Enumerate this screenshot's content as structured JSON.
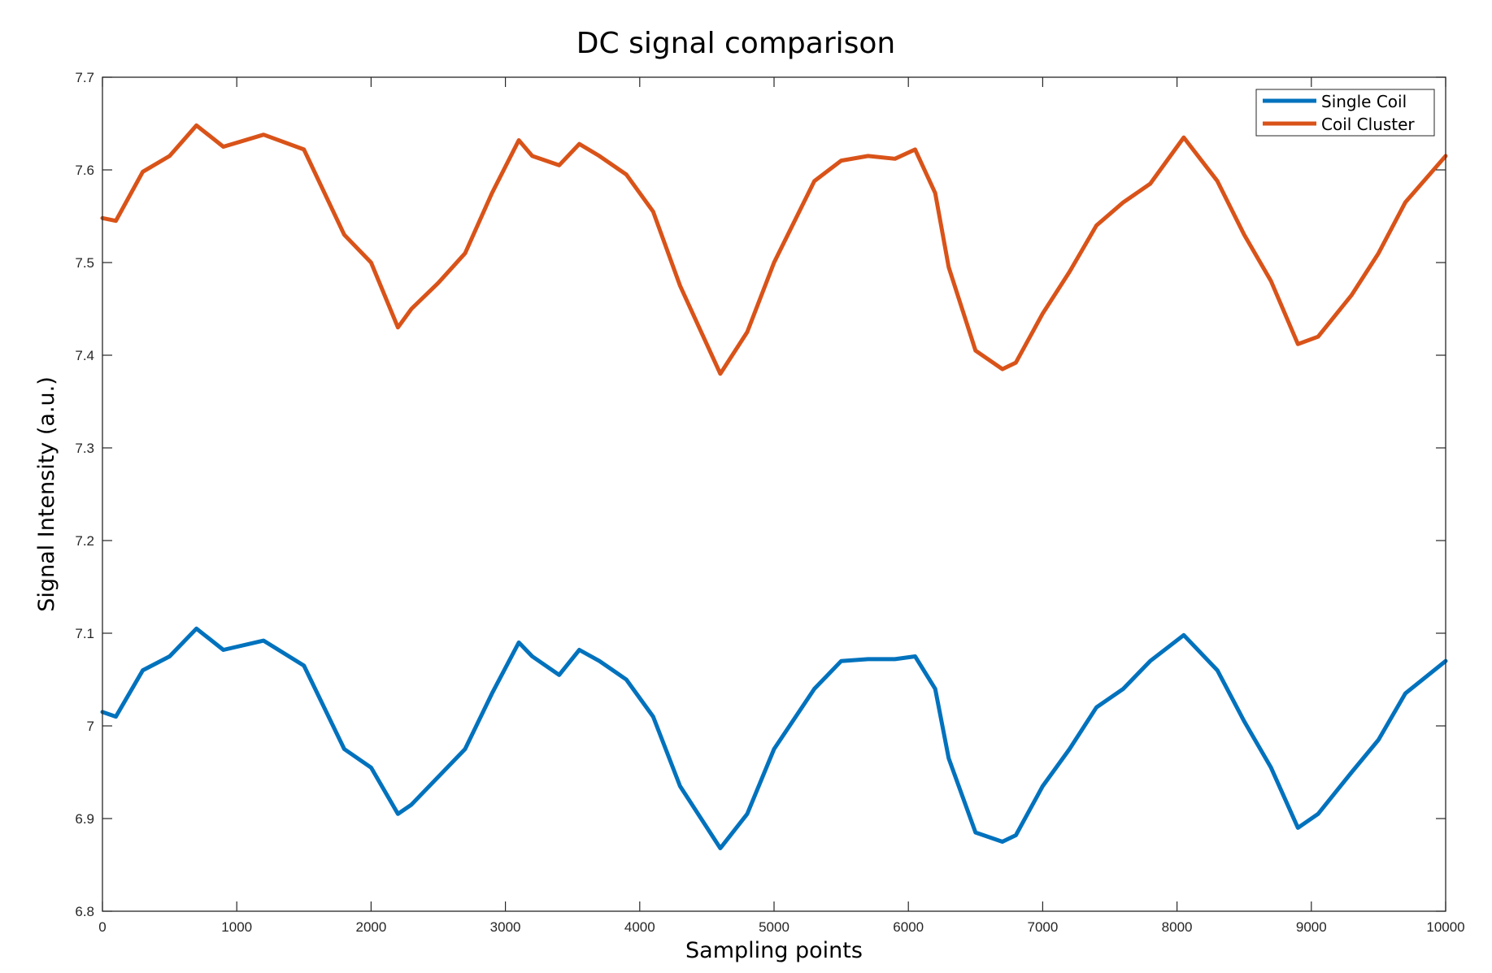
{
  "chart_data": {
    "type": "line",
    "title": "DC signal comparison",
    "xlabel": "Sampling points",
    "ylabel": "Signal Intensity (a.u.)",
    "xlim": [
      0,
      10000
    ],
    "ylim": [
      6.8,
      7.7
    ],
    "xticks": [
      0,
      1000,
      2000,
      3000,
      4000,
      5000,
      6000,
      7000,
      8000,
      9000,
      10000
    ],
    "xtick_labels": [
      "0",
      "1000",
      "2000",
      "3000",
      "4000",
      "5000",
      "6000",
      "7000",
      "8000",
      "9000",
      "10000"
    ],
    "yticks": [
      6.8,
      6.9,
      7.0,
      7.1,
      7.2,
      7.3,
      7.4,
      7.5,
      7.6,
      7.7
    ],
    "ytick_labels": [
      "6.8",
      "6.9",
      "7",
      "7.1",
      "7.2",
      "7.3",
      "7.4",
      "7.5",
      "7.6",
      "7.7"
    ],
    "grid": false,
    "legend_position": "top-right",
    "series": [
      {
        "name": "Single Coil",
        "color": "#0072BD",
        "x": [
          0,
          100,
          300,
          500,
          700,
          900,
          1200,
          1500,
          1800,
          2000,
          2200,
          2300,
          2500,
          2700,
          2900,
          3100,
          3200,
          3400,
          3550,
          3700,
          3900,
          4100,
          4300,
          4600,
          4800,
          5000,
          5300,
          5500,
          5700,
          5900,
          6050,
          6200,
          6300,
          6500,
          6700,
          6800,
          7000,
          7200,
          7400,
          7600,
          7800,
          8050,
          8300,
          8500,
          8700,
          8900,
          9050,
          9300,
          9500,
          9700,
          10000
        ],
        "y": [
          7.015,
          7.01,
          7.06,
          7.075,
          7.105,
          7.082,
          7.092,
          7.065,
          6.975,
          6.955,
          6.905,
          6.915,
          6.945,
          6.975,
          7.035,
          7.09,
          7.075,
          7.055,
          7.082,
          7.07,
          7.05,
          7.01,
          6.935,
          6.868,
          6.905,
          6.975,
          7.04,
          7.07,
          7.072,
          7.072,
          7.075,
          7.04,
          6.965,
          6.885,
          6.875,
          6.882,
          6.935,
          6.975,
          7.02,
          7.04,
          7.07,
          7.098,
          7.06,
          7.005,
          6.955,
          6.89,
          6.905,
          6.95,
          6.985,
          7.035,
          7.07
        ]
      },
      {
        "name": "Coil Cluster",
        "color": "#D95319",
        "x": [
          0,
          100,
          300,
          500,
          700,
          900,
          1200,
          1500,
          1800,
          2000,
          2200,
          2300,
          2500,
          2700,
          2900,
          3100,
          3200,
          3400,
          3550,
          3700,
          3900,
          4100,
          4300,
          4600,
          4800,
          5000,
          5300,
          5500,
          5700,
          5900,
          6050,
          6200,
          6300,
          6500,
          6700,
          6800,
          7000,
          7200,
          7400,
          7600,
          7800,
          8050,
          8300,
          8500,
          8700,
          8900,
          9050,
          9300,
          9500,
          9700,
          10000
        ],
        "y": [
          7.548,
          7.545,
          7.598,
          7.615,
          7.648,
          7.625,
          7.638,
          7.622,
          7.53,
          7.5,
          7.43,
          7.45,
          7.478,
          7.51,
          7.575,
          7.632,
          7.615,
          7.605,
          7.628,
          7.615,
          7.595,
          7.555,
          7.475,
          7.38,
          7.425,
          7.5,
          7.588,
          7.61,
          7.615,
          7.612,
          7.622,
          7.575,
          7.495,
          7.405,
          7.385,
          7.392,
          7.445,
          7.49,
          7.54,
          7.565,
          7.585,
          7.635,
          7.588,
          7.53,
          7.48,
          7.412,
          7.42,
          7.465,
          7.51,
          7.565,
          7.615
        ]
      }
    ]
  }
}
